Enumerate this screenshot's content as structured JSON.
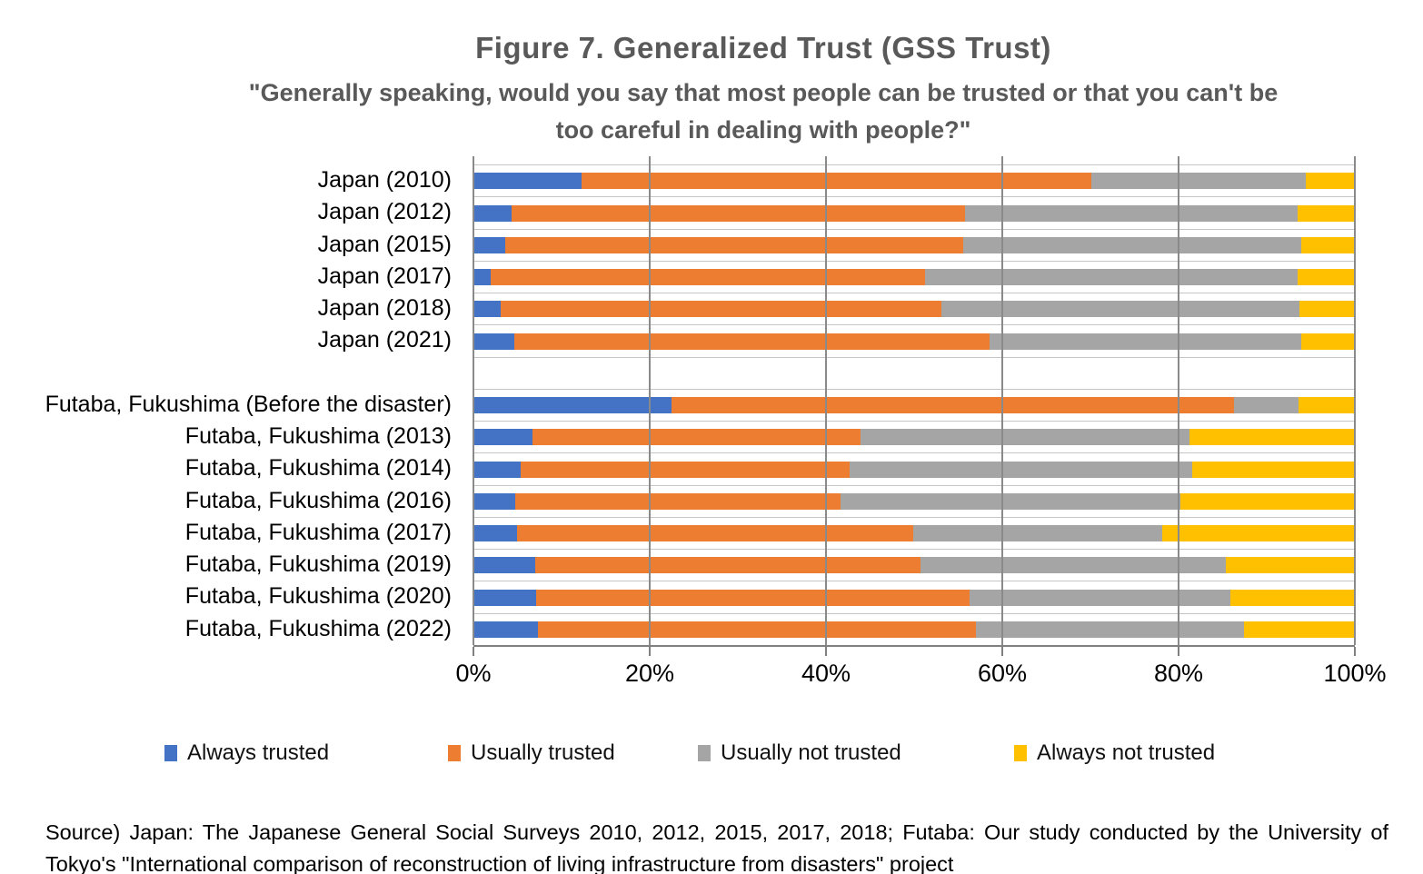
{
  "chart_data": {
    "type": "bar",
    "variant": "horizontal-stacked-100pct",
    "title": "Figure 7. Generalized Trust (GSS Trust)",
    "subtitle_line1": "\"Generally speaking, would you say that most people can be trusted or that you can't be",
    "subtitle_line2": "too careful in dealing with people?\"",
    "xlim": [
      0,
      100
    ],
    "x_ticks": [
      "0%",
      "20%",
      "40%",
      "60%",
      "80%",
      "100%"
    ],
    "grid": "vertical gridlines every 20%, light horizontal band separators",
    "legend_position": "bottom",
    "gap_after_index": 5,
    "categories": [
      "Japan (2010)",
      "Japan (2012)",
      "Japan (2015)",
      "Japan (2017)",
      "Japan (2018)",
      "Japan (2021)",
      "Futaba, Fukushima (Before the disaster)",
      "Futaba, Fukushima (2013)",
      "Futaba, Fukushima (2014)",
      "Futaba, Fukushima (2016)",
      "Futaba, Fukushima (2017)",
      "Futaba, Fukushima (2019)",
      "Futaba, Fukushima (2020)",
      "Futaba, Fukushima (2022)"
    ],
    "series": [
      {
        "name": "Always trusted",
        "color": "#4472C4",
        "values": [
          12.3,
          4.3,
          3.6,
          2.0,
          3.1,
          4.6,
          22.5,
          6.7,
          5.4,
          4.7,
          4.9,
          7.0,
          7.1,
          7.3
        ]
      },
      {
        "name": "Usually trusted",
        "color": "#ED7D31",
        "values": [
          57.8,
          51.5,
          52.0,
          49.2,
          50.0,
          54.0,
          63.8,
          37.2,
          37.3,
          36.9,
          45.0,
          43.7,
          49.2,
          49.7
        ]
      },
      {
        "name": "Usually not trusted",
        "color": "#A5A5A5",
        "values": [
          24.3,
          37.7,
          38.3,
          42.3,
          40.6,
          35.3,
          7.3,
          37.3,
          38.8,
          38.6,
          28.2,
          34.7,
          29.6,
          30.4
        ]
      },
      {
        "name": "Always not trusted",
        "color": "#FFC000",
        "values": [
          5.6,
          6.5,
          6.1,
          6.5,
          6.3,
          6.1,
          6.4,
          18.8,
          18.5,
          19.8,
          21.9,
          14.6,
          14.1,
          12.6
        ]
      }
    ]
  },
  "source": {
    "text": "Source) Japan: The Japanese General Social Surveys 2010, 2012, 2015, 2017, 2018; Futaba: Our study conducted by the University of Tokyo's \"International comparison of reconstruction of living infrastructure from disasters\" project"
  }
}
